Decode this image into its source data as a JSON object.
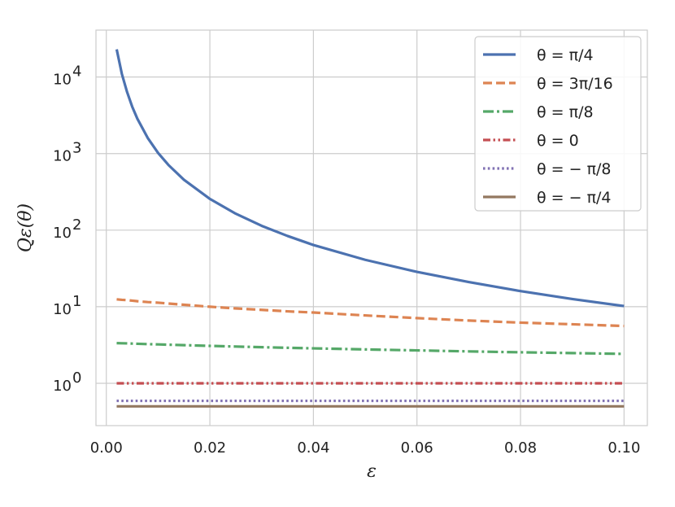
{
  "chart_data": {
    "type": "line",
    "xlabel": "ε",
    "ylabel": "Qε(θ)",
    "xlim": [
      -0.002,
      0.1045
    ],
    "ylim": [
      0.28,
      41000
    ],
    "yscale": "log",
    "grid": true,
    "legend_position": "top-right",
    "x_ticks": [
      {
        "value": 0.0,
        "label": "0.00"
      },
      {
        "value": 0.02,
        "label": "0.02"
      },
      {
        "value": 0.04,
        "label": "0.04"
      },
      {
        "value": 0.06,
        "label": "0.06"
      },
      {
        "value": 0.08,
        "label": "0.08"
      },
      {
        "value": 0.1,
        "label": "0.10"
      }
    ],
    "y_ticks": [
      {
        "value": 1,
        "base": "10",
        "exp": "0"
      },
      {
        "value": 10,
        "base": "10",
        "exp": "1"
      },
      {
        "value": 100,
        "base": "10",
        "exp": "2"
      },
      {
        "value": 1000,
        "base": "10",
        "exp": "3"
      },
      {
        "value": 10000,
        "base": "10",
        "exp": "4"
      }
    ],
    "x": [
      0.002,
      0.003,
      0.004,
      0.005,
      0.006,
      0.008,
      0.01,
      0.012,
      0.015,
      0.02,
      0.025,
      0.03,
      0.035,
      0.04,
      0.05,
      0.06,
      0.07,
      0.08,
      0.09,
      0.1
    ],
    "series": [
      {
        "name": "θ = π/4",
        "color": "#4c72b0",
        "dash": "solid",
        "values": [
          23000,
          11000,
          6400,
          4100,
          2850,
          1600,
          1020,
          710,
          455,
          256,
          164,
          114,
          84,
          64,
          41,
          28.5,
          21,
          16,
          12.6,
          10.2
        ]
      },
      {
        "name": "θ = 3π/16",
        "color": "#dd8452",
        "dash": "dashed",
        "values": [
          12.5,
          12.3,
          12.2,
          12.0,
          11.8,
          11.5,
          11.3,
          11.0,
          10.6,
          10.0,
          9.5,
          9.1,
          8.7,
          8.4,
          7.7,
          7.1,
          6.6,
          6.2,
          5.9,
          5.6
        ]
      },
      {
        "name": "θ = π/8",
        "color": "#55a868",
        "dash": "dashdot",
        "values": [
          3.35,
          3.33,
          3.32,
          3.3,
          3.28,
          3.25,
          3.22,
          3.19,
          3.15,
          3.08,
          3.02,
          2.96,
          2.91,
          2.86,
          2.77,
          2.69,
          2.61,
          2.54,
          2.48,
          2.42
        ]
      },
      {
        "name": "θ = 0",
        "color": "#c44e52",
        "dash": "dashdotdot",
        "values": [
          1.0,
          1.0,
          1.0,
          1.0,
          1.0,
          1.0,
          1.0,
          1.0,
          1.0,
          1.0,
          1.0,
          1.0,
          1.0,
          1.0,
          1.0,
          1.0,
          1.0,
          1.0,
          1.0,
          1.0
        ]
      },
      {
        "name": "θ = − π/8",
        "color": "#8172b3",
        "dash": "dotted",
        "values": [
          0.59,
          0.59,
          0.59,
          0.59,
          0.59,
          0.59,
          0.59,
          0.59,
          0.59,
          0.59,
          0.59,
          0.59,
          0.59,
          0.59,
          0.59,
          0.59,
          0.59,
          0.59,
          0.59,
          0.59
        ]
      },
      {
        "name": "θ = − π/4",
        "color": "#937860",
        "dash": "solid",
        "values": [
          0.5,
          0.5,
          0.5,
          0.5,
          0.5,
          0.5,
          0.5,
          0.5,
          0.5,
          0.5,
          0.5,
          0.5,
          0.5,
          0.5,
          0.5,
          0.5,
          0.5,
          0.5,
          0.5,
          0.5
        ]
      }
    ]
  }
}
